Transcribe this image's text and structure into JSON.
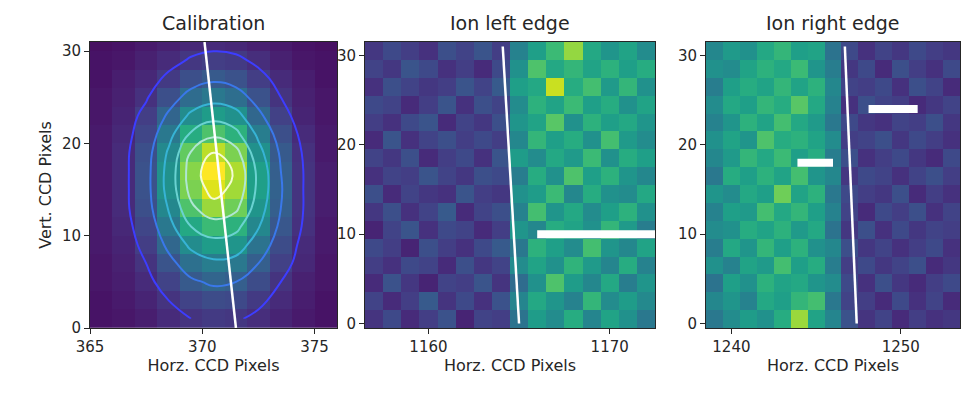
{
  "chart_data": [
    {
      "type": "heatmap",
      "title": "Calibration",
      "x_label": "Horz. CCD Pixels",
      "y_label": "Vert. CCD Pixels",
      "xlim": [
        365,
        376
      ],
      "ylim": [
        0,
        31
      ],
      "xticks": [
        365,
        370,
        375
      ],
      "yticks": [
        0,
        10,
        20,
        30
      ],
      "zlim": [
        0,
        1
      ],
      "x": [
        365.5,
        366.5,
        367.5,
        368.5,
        369.5,
        370.5,
        371.5,
        372.5,
        373.5,
        374.5,
        375.5
      ],
      "y": [
        1,
        3,
        5,
        7,
        9,
        11,
        13,
        15,
        17,
        19,
        21,
        23,
        25,
        27,
        29,
        31
      ],
      "z": [
        [
          0.05,
          0.06,
          0.08,
          0.12,
          0.15,
          0.17,
          0.16,
          0.13,
          0.1,
          0.07,
          0.05
        ],
        [
          0.05,
          0.07,
          0.1,
          0.15,
          0.2,
          0.23,
          0.22,
          0.17,
          0.12,
          0.08,
          0.05
        ],
        [
          0.06,
          0.08,
          0.12,
          0.2,
          0.28,
          0.32,
          0.3,
          0.23,
          0.15,
          0.09,
          0.06
        ],
        [
          0.06,
          0.09,
          0.15,
          0.26,
          0.37,
          0.42,
          0.4,
          0.3,
          0.19,
          0.11,
          0.06
        ],
        [
          0.07,
          0.1,
          0.18,
          0.33,
          0.48,
          0.55,
          0.52,
          0.38,
          0.23,
          0.12,
          0.07
        ],
        [
          0.07,
          0.11,
          0.21,
          0.4,
          0.6,
          0.68,
          0.64,
          0.46,
          0.27,
          0.14,
          0.07
        ],
        [
          0.07,
          0.12,
          0.24,
          0.46,
          0.72,
          0.85,
          0.78,
          0.52,
          0.3,
          0.15,
          0.08
        ],
        [
          0.07,
          0.12,
          0.25,
          0.5,
          0.8,
          0.95,
          0.86,
          0.56,
          0.31,
          0.15,
          0.08
        ],
        [
          0.07,
          0.12,
          0.25,
          0.5,
          0.82,
          1.0,
          0.88,
          0.56,
          0.3,
          0.15,
          0.08
        ],
        [
          0.07,
          0.12,
          0.24,
          0.47,
          0.76,
          0.9,
          0.8,
          0.5,
          0.28,
          0.14,
          0.07
        ],
        [
          0.07,
          0.11,
          0.21,
          0.4,
          0.62,
          0.72,
          0.64,
          0.42,
          0.24,
          0.12,
          0.07
        ],
        [
          0.06,
          0.1,
          0.18,
          0.32,
          0.48,
          0.55,
          0.5,
          0.33,
          0.19,
          0.1,
          0.06
        ],
        [
          0.06,
          0.09,
          0.14,
          0.24,
          0.35,
          0.4,
          0.36,
          0.25,
          0.15,
          0.09,
          0.06
        ],
        [
          0.05,
          0.08,
          0.11,
          0.17,
          0.24,
          0.28,
          0.25,
          0.18,
          0.12,
          0.08,
          0.05
        ],
        [
          0.05,
          0.06,
          0.09,
          0.12,
          0.16,
          0.18,
          0.17,
          0.13,
          0.09,
          0.06,
          0.05
        ],
        [
          0.04,
          0.05,
          0.07,
          0.09,
          0.11,
          0.12,
          0.11,
          0.09,
          0.07,
          0.05,
          0.04
        ]
      ],
      "contour_levels": {
        "start": 0.15,
        "end": 0.9,
        "size": 0.15
      },
      "lines": [
        {
          "x": [
            370.1,
            371.5
          ],
          "y": [
            31,
            0
          ],
          "color": "#ffffff"
        }
      ],
      "bars": []
    },
    {
      "type": "heatmap",
      "title": "Ion left edge",
      "x_label": "Horz. CCD Pixels",
      "xlim": [
        1156.5,
        1172.5
      ],
      "ylim": [
        -0.5,
        31.5
      ],
      "xticks": [
        1160,
        1170
      ],
      "yticks": [
        0,
        10,
        20,
        30
      ],
      "zlim": [
        0,
        1
      ],
      "x": [
        1157,
        1158,
        1159,
        1160,
        1161,
        1162,
        1163,
        1164,
        1165,
        1166,
        1167,
        1168,
        1169,
        1170,
        1171,
        1172
      ],
      "y": [
        0.5,
        2.5,
        4.5,
        6.5,
        8.5,
        10.5,
        12.5,
        14.5,
        16.5,
        18.5,
        20.5,
        22.5,
        24.5,
        26.5,
        28.5,
        30.5
      ],
      "z": [
        [
          0.15,
          0.22,
          0.12,
          0.18,
          0.25,
          0.1,
          0.2,
          0.18,
          0.38,
          0.55,
          0.48,
          0.62,
          0.45,
          0.58,
          0.5,
          0.4
        ],
        [
          0.2,
          0.12,
          0.18,
          0.28,
          0.15,
          0.22,
          0.14,
          0.25,
          0.45,
          0.6,
          0.52,
          0.44,
          0.66,
          0.48,
          0.55,
          0.47
        ],
        [
          0.12,
          0.25,
          0.16,
          0.1,
          0.2,
          0.18,
          0.26,
          0.15,
          0.35,
          0.5,
          0.72,
          0.55,
          0.46,
          0.6,
          0.42,
          0.52
        ],
        [
          0.18,
          0.14,
          0.22,
          0.2,
          0.12,
          0.24,
          0.16,
          0.2,
          0.48,
          0.58,
          0.5,
          0.65,
          0.54,
          0.45,
          0.62,
          0.44
        ],
        [
          0.22,
          0.18,
          0.1,
          0.24,
          0.18,
          0.14,
          0.22,
          0.28,
          0.4,
          0.64,
          0.56,
          0.48,
          0.7,
          0.52,
          0.46,
          0.58
        ],
        [
          0.1,
          0.2,
          0.26,
          0.14,
          0.22,
          0.2,
          0.12,
          0.18,
          0.52,
          0.46,
          0.62,
          0.58,
          0.5,
          0.66,
          0.54,
          0.42
        ],
        [
          0.16,
          0.24,
          0.14,
          0.2,
          0.28,
          0.12,
          0.2,
          0.24,
          0.44,
          0.7,
          0.52,
          0.6,
          0.48,
          0.56,
          0.64,
          0.5
        ],
        [
          0.24,
          0.12,
          0.2,
          0.16,
          0.14,
          0.26,
          0.18,
          0.16,
          0.5,
          0.55,
          0.68,
          0.46,
          0.62,
          0.5,
          0.48,
          0.6
        ],
        [
          0.14,
          0.2,
          0.18,
          0.26,
          0.2,
          0.16,
          0.24,
          0.22,
          0.42,
          0.62,
          0.5,
          0.72,
          0.56,
          0.64,
          0.52,
          0.46
        ],
        [
          0.2,
          0.16,
          0.24,
          0.12,
          0.18,
          0.22,
          0.14,
          0.26,
          0.55,
          0.48,
          0.6,
          0.54,
          0.68,
          0.5,
          0.62,
          0.56
        ],
        [
          0.12,
          0.26,
          0.14,
          0.2,
          0.24,
          0.18,
          0.22,
          0.18,
          0.46,
          0.66,
          0.56,
          0.62,
          0.5,
          0.7,
          0.54,
          0.48
        ],
        [
          0.18,
          0.14,
          0.22,
          0.26,
          0.12,
          0.2,
          0.16,
          0.24,
          0.52,
          0.58,
          0.74,
          0.5,
          0.64,
          0.56,
          0.6,
          0.52
        ],
        [
          0.22,
          0.2,
          0.12,
          0.18,
          0.26,
          0.14,
          0.24,
          0.2,
          0.48,
          0.64,
          0.58,
          0.68,
          0.56,
          0.62,
          0.5,
          0.58
        ],
        [
          0.14,
          0.24,
          0.2,
          0.16,
          0.18,
          0.26,
          0.2,
          0.28,
          0.56,
          0.6,
          0.92,
          0.62,
          0.7,
          0.54,
          0.66,
          0.5
        ],
        [
          0.2,
          0.16,
          0.26,
          0.22,
          0.14,
          0.18,
          0.12,
          0.22,
          0.5,
          0.72,
          0.6,
          0.66,
          0.58,
          0.64,
          0.56,
          0.62
        ],
        [
          0.16,
          0.22,
          0.18,
          0.14,
          0.24,
          0.2,
          0.26,
          0.18,
          0.44,
          0.56,
          0.68,
          0.84,
          0.6,
          0.52,
          0.58,
          0.48
        ]
      ],
      "lines": [
        {
          "x": [
            1164.1,
            1165.0
          ],
          "y": [
            31,
            0
          ],
          "color": "#ffffff"
        }
      ],
      "bars": [
        {
          "x": [
            1166.0,
            1172.8
          ],
          "y": 10,
          "color": "#ffffff"
        }
      ]
    },
    {
      "type": "heatmap",
      "title": "Ion right edge",
      "x_label": "Horz. CCD Pixels",
      "xlim": [
        1238.5,
        1253.5
      ],
      "ylim": [
        -0.5,
        31.5
      ],
      "xticks": [
        1240,
        1250
      ],
      "yticks": [
        0,
        10,
        20,
        30
      ],
      "zlim": [
        0,
        1
      ],
      "x": [
        1239,
        1240,
        1241,
        1242,
        1243,
        1244,
        1245,
        1246,
        1247,
        1248,
        1249,
        1250,
        1251,
        1252,
        1253
      ],
      "y": [
        0.5,
        2.5,
        4.5,
        6.5,
        8.5,
        10.5,
        12.5,
        14.5,
        16.5,
        18.5,
        20.5,
        22.5,
        24.5,
        26.5,
        28.5,
        30.5
      ],
      "z": [
        [
          0.4,
          0.48,
          0.55,
          0.5,
          0.62,
          0.85,
          0.58,
          0.45,
          0.25,
          0.15,
          0.2,
          0.12,
          0.18,
          0.14,
          0.16
        ],
        [
          0.46,
          0.52,
          0.44,
          0.6,
          0.56,
          0.66,
          0.7,
          0.4,
          0.2,
          0.18,
          0.12,
          0.22,
          0.14,
          0.2,
          0.12
        ],
        [
          0.38,
          0.56,
          0.5,
          0.64,
          0.58,
          0.6,
          0.52,
          0.48,
          0.22,
          0.14,
          0.24,
          0.16,
          0.12,
          0.18,
          0.22
        ],
        [
          0.5,
          0.44,
          0.58,
          0.54,
          0.7,
          0.56,
          0.62,
          0.42,
          0.18,
          0.22,
          0.16,
          0.2,
          0.24,
          0.12,
          0.16
        ],
        [
          0.42,
          0.6,
          0.52,
          0.66,
          0.56,
          0.64,
          0.5,
          0.46,
          0.24,
          0.16,
          0.2,
          0.14,
          0.18,
          0.22,
          0.14
        ],
        [
          0.48,
          0.5,
          0.62,
          0.58,
          0.64,
          0.54,
          0.6,
          0.38,
          0.16,
          0.24,
          0.14,
          0.22,
          0.16,
          0.2,
          0.18
        ],
        [
          0.44,
          0.56,
          0.54,
          0.7,
          0.6,
          0.66,
          0.56,
          0.44,
          0.2,
          0.12,
          0.22,
          0.18,
          0.24,
          0.14,
          0.2
        ],
        [
          0.52,
          0.48,
          0.6,
          0.56,
          0.78,
          0.58,
          0.64,
          0.4,
          0.22,
          0.18,
          0.16,
          0.24,
          0.12,
          0.18,
          0.14
        ],
        [
          0.4,
          0.62,
          0.56,
          0.64,
          0.58,
          0.7,
          0.52,
          0.46,
          0.16,
          0.22,
          0.2,
          0.14,
          0.2,
          0.24,
          0.18
        ],
        [
          0.46,
          0.54,
          0.66,
          0.6,
          0.68,
          0.56,
          0.62,
          0.42,
          0.24,
          0.14,
          0.18,
          0.22,
          0.16,
          0.12,
          0.22
        ],
        [
          0.5,
          0.58,
          0.52,
          0.72,
          0.62,
          0.64,
          0.58,
          0.48,
          0.18,
          0.2,
          0.24,
          0.16,
          0.22,
          0.18,
          0.14
        ],
        [
          0.44,
          0.52,
          0.64,
          0.58,
          0.7,
          0.6,
          0.54,
          0.4,
          0.22,
          0.16,
          0.14,
          0.2,
          0.18,
          0.24,
          0.16
        ],
        [
          0.48,
          0.6,
          0.56,
          0.66,
          0.62,
          0.74,
          0.6,
          0.44,
          0.14,
          0.24,
          0.2,
          0.18,
          0.12,
          0.16,
          0.2
        ],
        [
          0.42,
          0.56,
          0.62,
          0.58,
          0.66,
          0.58,
          0.64,
          0.46,
          0.2,
          0.18,
          0.22,
          0.14,
          0.24,
          0.2,
          0.12
        ],
        [
          0.5,
          0.48,
          0.58,
          0.64,
          0.6,
          0.68,
          0.52,
          0.42,
          0.16,
          0.22,
          0.12,
          0.24,
          0.18,
          0.14,
          0.22
        ],
        [
          0.46,
          0.54,
          0.5,
          0.6,
          0.66,
          0.56,
          0.58,
          0.38,
          0.22,
          0.14,
          0.2,
          0.16,
          0.22,
          0.18,
          0.16
        ]
      ],
      "lines": [
        {
          "x": [
            1246.7,
            1247.4
          ],
          "y": [
            31,
            0
          ],
          "color": "#ffffff"
        }
      ],
      "bars": [
        {
          "x": [
            1243.9,
            1246.0
          ],
          "y": 18,
          "color": "#ffffff"
        },
        {
          "x": [
            1248.1,
            1251.0
          ],
          "y": 24,
          "color": "#ffffff"
        }
      ]
    }
  ]
}
